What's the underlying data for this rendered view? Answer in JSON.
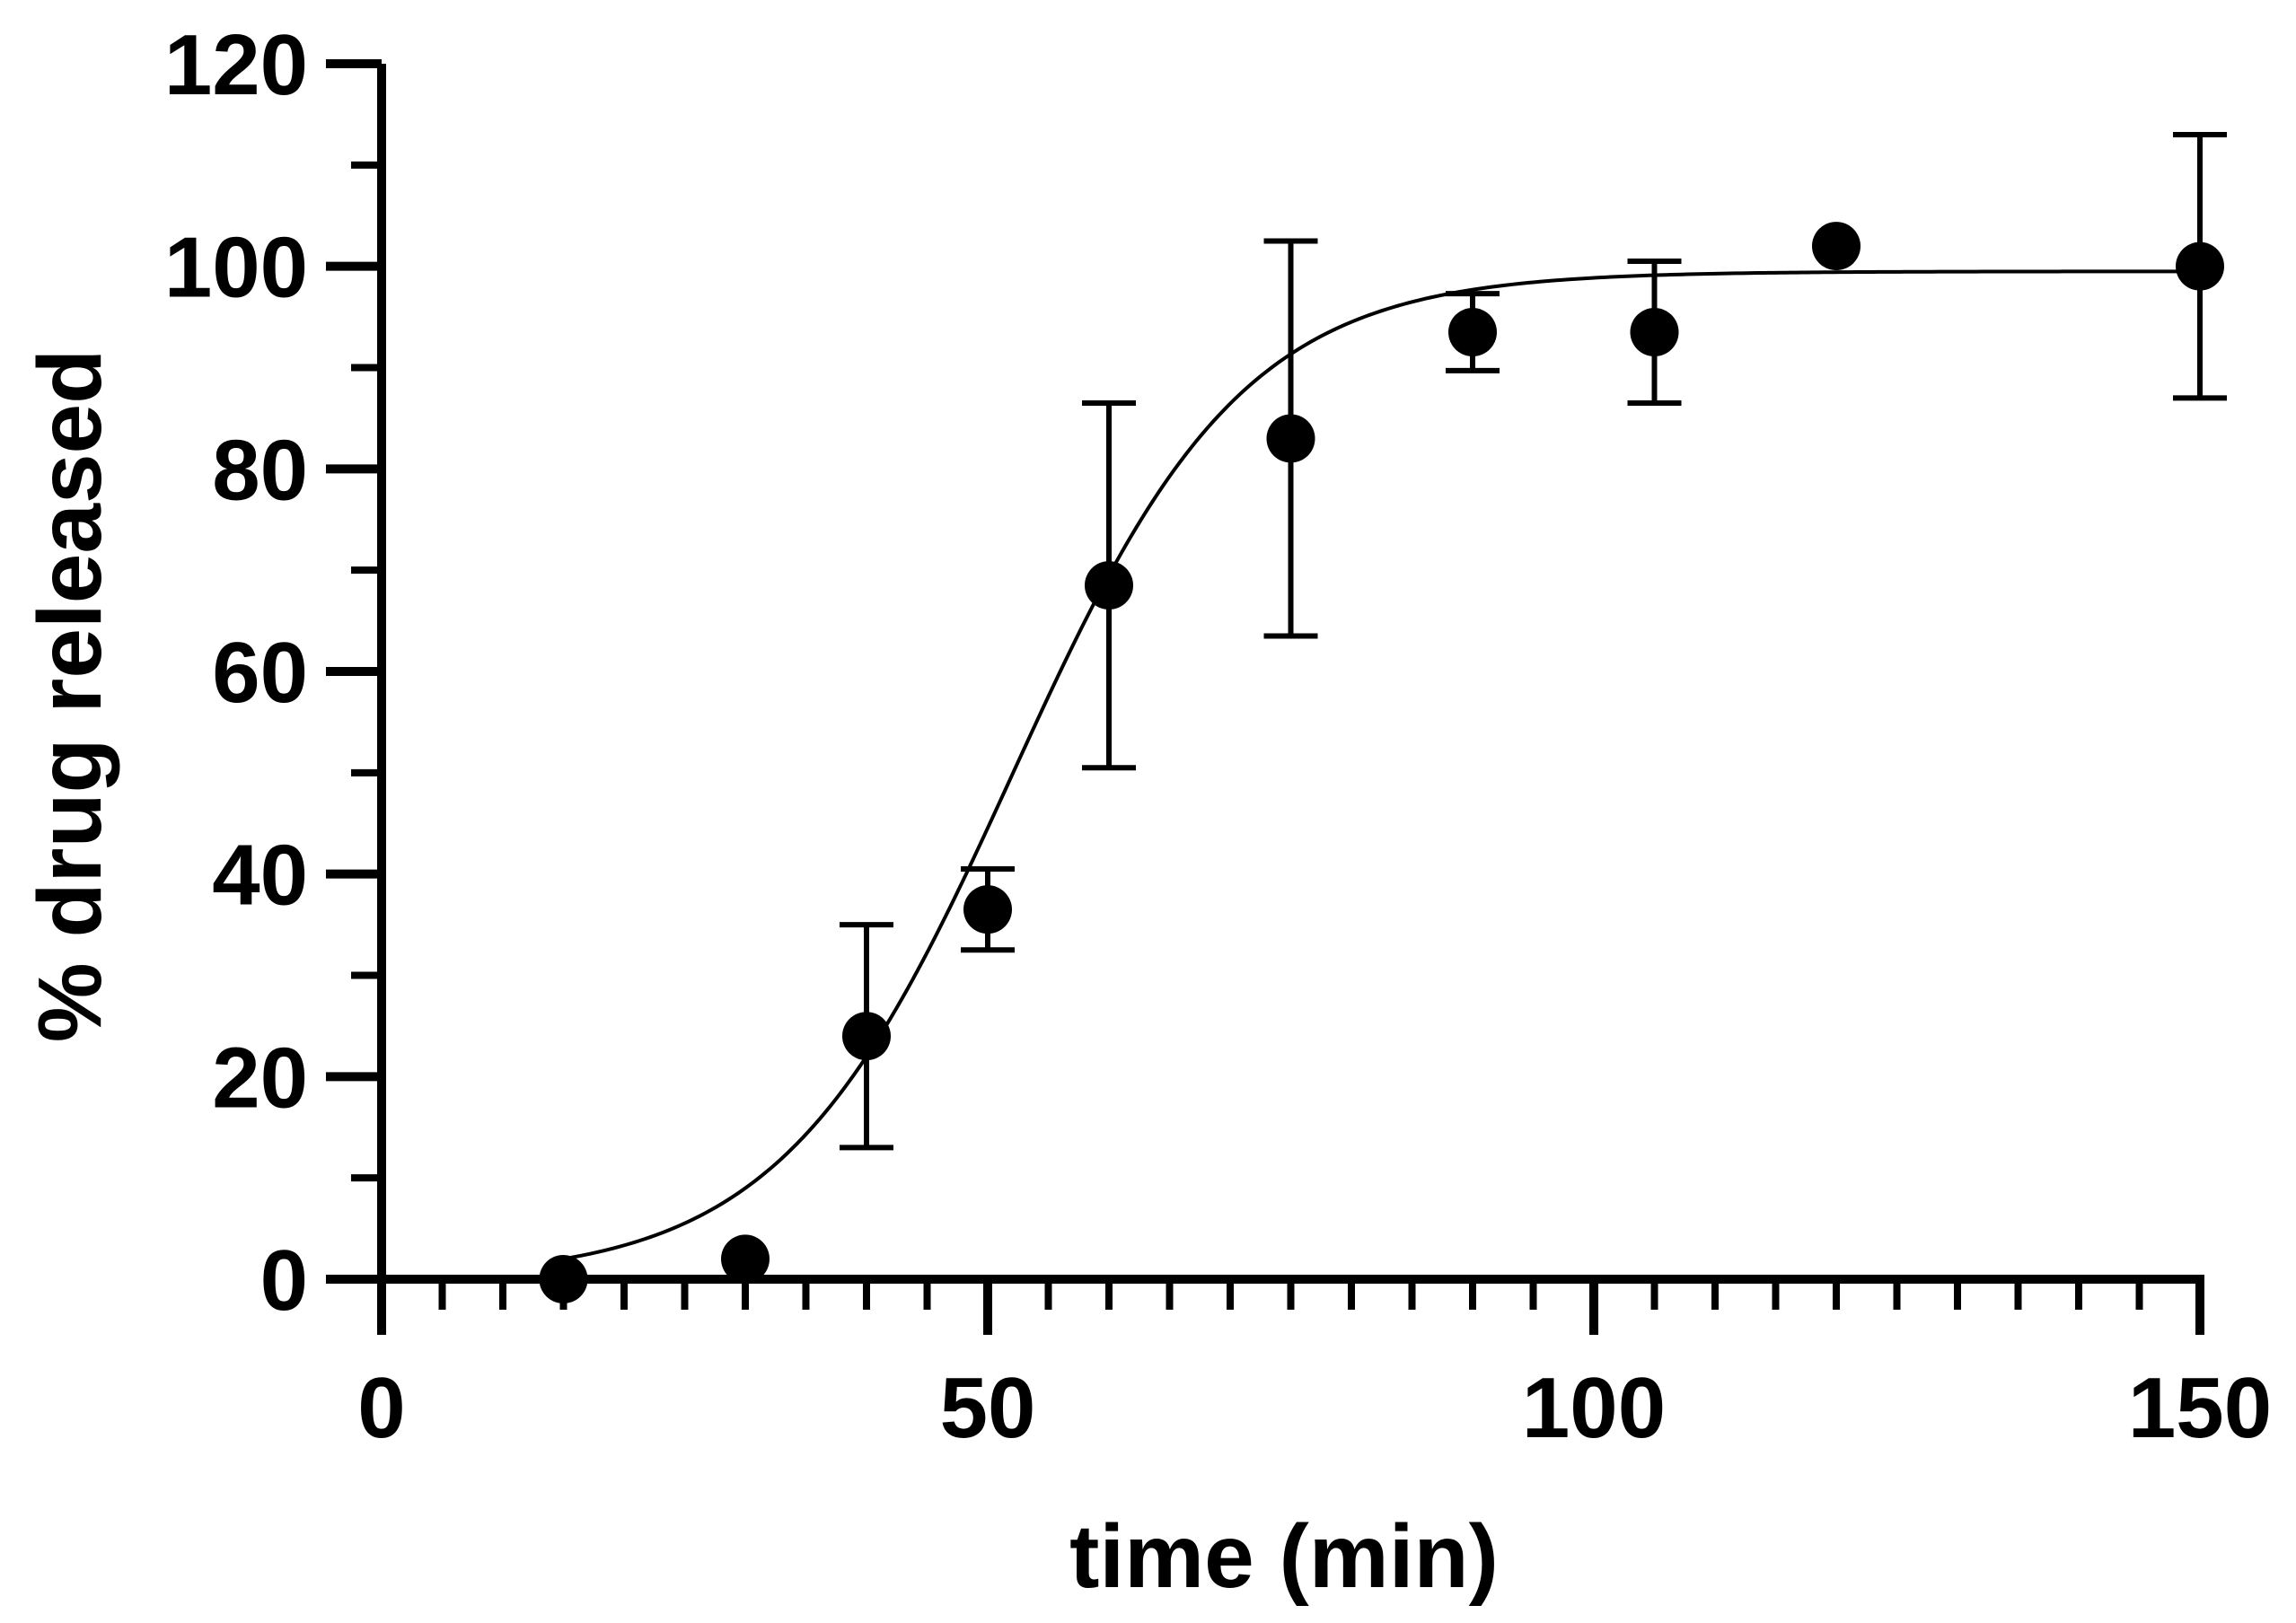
{
  "chart_data": {
    "type": "scatter",
    "title": "",
    "xlabel": "time (min)",
    "ylabel": "% drug released",
    "xlim": [
      0,
      150
    ],
    "ylim": [
      0,
      120
    ],
    "x_ticks": [
      "0",
      "50",
      "100",
      "150"
    ],
    "y_ticks": [
      "0",
      "20",
      "40",
      "60",
      "80",
      "100",
      "120"
    ],
    "grid": false,
    "legend": "none",
    "series": [
      {
        "x": [
          15,
          30,
          40,
          50,
          60,
          75,
          90,
          105,
          120,
          150
        ],
        "y": [
          0,
          2,
          24,
          36.5,
          68.5,
          83,
          93.5,
          93.5,
          102,
          100
        ],
        "error": [
          null,
          null,
          11,
          4,
          18,
          19.5,
          3.8,
          7,
          null,
          13
        ],
        "fit": {
          "type": "sigmoidal",
          "top": 99.5,
          "midpoint_x": 52,
          "rate": 0.105,
          "x_range": [
            15,
            150
          ]
        }
      }
    ],
    "marker_color": "#000000",
    "line_color": "#000000"
  }
}
